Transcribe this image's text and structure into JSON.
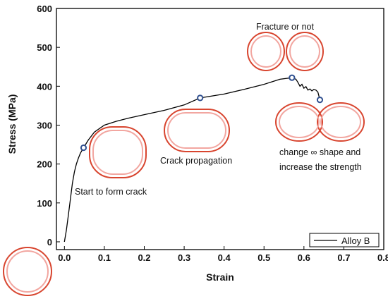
{
  "chart_data": {
    "type": "line",
    "title": "",
    "xlabel": "Strain",
    "ylabel": "Stress (MPa)",
    "xlim": [
      -0.02,
      0.8
    ],
    "ylim": [
      -20,
      600
    ],
    "x_ticks": [
      "0.0",
      "0.1",
      "0.2",
      "0.3",
      "0.4",
      "0.5",
      "0.6",
      "0.7",
      "0.8"
    ],
    "y_ticks": [
      "0",
      "100",
      "200",
      "300",
      "400",
      "500",
      "600"
    ],
    "grid": false,
    "legend": {
      "position": "bottom-right",
      "entries": [
        "Alloy B"
      ]
    },
    "series": [
      {
        "name": "Alloy B",
        "color": "#000000",
        "points": [
          [
            0.0,
            0
          ],
          [
            0.005,
            30
          ],
          [
            0.01,
            70
          ],
          [
            0.015,
            110
          ],
          [
            0.02,
            150
          ],
          [
            0.025,
            180
          ],
          [
            0.03,
            200
          ],
          [
            0.035,
            215
          ],
          [
            0.04,
            228
          ],
          [
            0.048,
            242
          ],
          [
            0.06,
            262
          ],
          [
            0.075,
            282
          ],
          [
            0.1,
            300
          ],
          [
            0.13,
            310
          ],
          [
            0.16,
            318
          ],
          [
            0.2,
            327
          ],
          [
            0.25,
            338
          ],
          [
            0.3,
            352
          ],
          [
            0.34,
            370
          ],
          [
            0.4,
            380
          ],
          [
            0.45,
            392
          ],
          [
            0.5,
            405
          ],
          [
            0.54,
            418
          ],
          [
            0.57,
            422
          ],
          [
            0.58,
            418
          ],
          [
            0.585,
            410
          ],
          [
            0.59,
            400
          ],
          [
            0.595,
            405
          ],
          [
            0.6,
            395
          ],
          [
            0.605,
            399
          ],
          [
            0.61,
            390
          ],
          [
            0.615,
            393
          ],
          [
            0.62,
            388
          ],
          [
            0.625,
            392
          ],
          [
            0.63,
            390
          ],
          [
            0.635,
            385
          ],
          [
            0.64,
            365
          ]
        ]
      }
    ],
    "markers": [
      {
        "x": 0.048,
        "y": 242
      },
      {
        "x": 0.34,
        "y": 370
      },
      {
        "x": 0.57,
        "y": 422
      },
      {
        "x": 0.64,
        "y": 365
      }
    ],
    "annotations": [
      "Start to form crack",
      "Crack propagation",
      "Fracture or not",
      "change ∞ shape and",
      "increase the strength"
    ]
  }
}
